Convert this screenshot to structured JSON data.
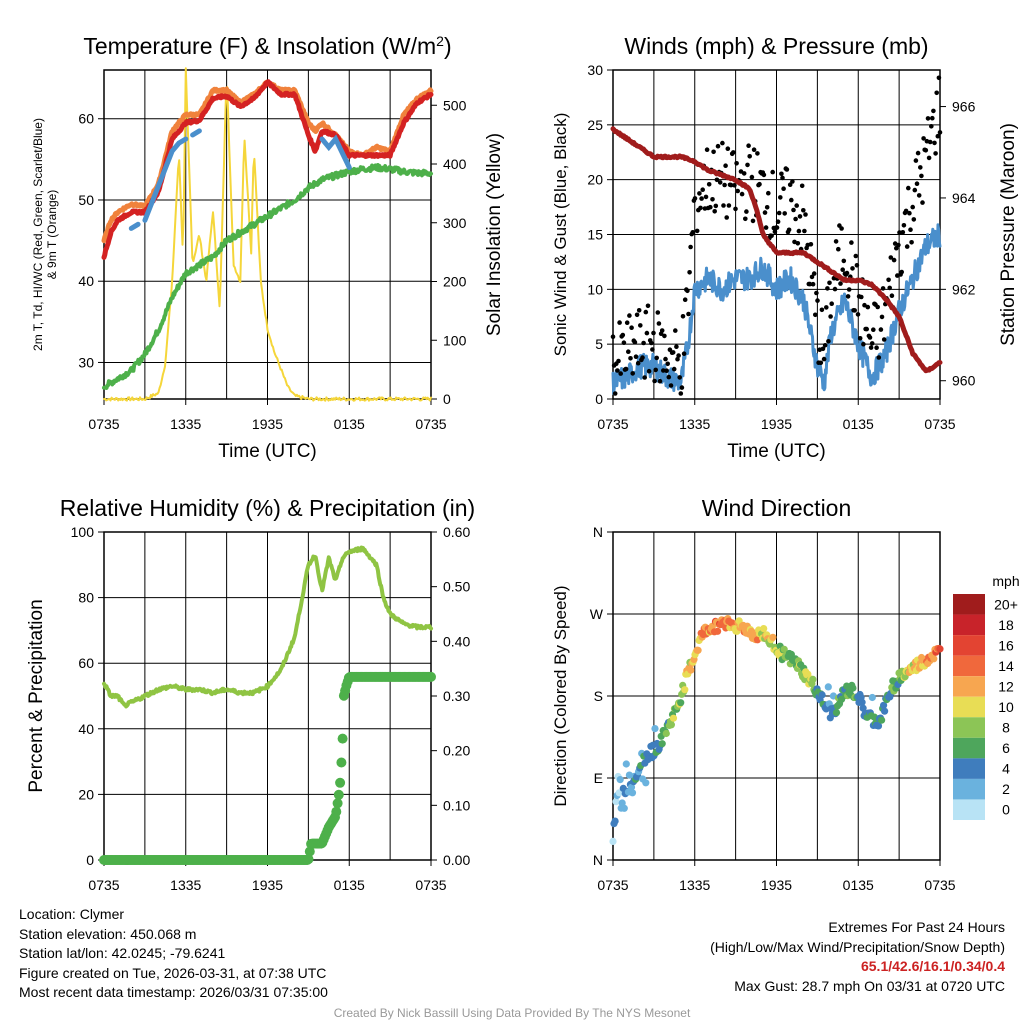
{
  "chart_data": [
    {
      "type": "line",
      "title": "Temperature (F) & Insolation (W/m²)",
      "xlabel": "Time (UTC)",
      "ylabel": "2m T, T_d, HI/WC (Red, Green, Scarlet/Blue) & 9m T (Orange)",
      "ylabel_right": "Solar Insolation (Yellow)",
      "x_ticks": [
        "0735",
        "1335",
        "1935",
        "0135",
        "0735"
      ],
      "xlim": [
        0,
        24
      ],
      "ylim": [
        25.5,
        66
      ],
      "y_ticks": [
        30,
        40,
        50,
        60
      ],
      "ylim_right": [
        0,
        560
      ],
      "y_ticks_right": [
        0,
        100,
        200,
        300,
        400,
        500
      ],
      "series": [
        {
          "name": "9m T",
          "color": "#f0823c",
          "x": [
            0,
            0.5,
            1,
            2,
            3,
            4,
            5,
            6,
            7,
            8,
            9,
            10,
            11,
            12,
            13,
            14,
            15,
            15.5,
            16,
            17,
            18,
            19,
            20,
            21,
            22,
            23,
            24
          ],
          "values": [
            45,
            47.5,
            48.5,
            49.5,
            49.2,
            52,
            58.5,
            60.5,
            60.5,
            63.5,
            63.5,
            62,
            63,
            64.5,
            63.5,
            63.5,
            59.5,
            58.5,
            59.5,
            58,
            56,
            55.5,
            56.5,
            56,
            60.5,
            62.5,
            63.5
          ]
        },
        {
          "name": "2m T",
          "color": "#d42222",
          "x": [
            0,
            0.5,
            1,
            2,
            3,
            4,
            5,
            6,
            7,
            8,
            9,
            10,
            11,
            12,
            13,
            14,
            15,
            15.5,
            16,
            17,
            18,
            19,
            20,
            21,
            22,
            23,
            24
          ],
          "values": [
            43,
            46,
            47.5,
            48.5,
            48.5,
            51,
            57.5,
            59.5,
            59.8,
            62.5,
            62.8,
            61.5,
            62.5,
            64.5,
            63,
            63,
            58,
            56,
            58.5,
            58,
            55.5,
            55.5,
            55.5,
            55.5,
            59.5,
            62,
            63
          ]
        },
        {
          "name": "Dew point",
          "color": "#4db04a",
          "x": [
            0,
            1,
            2,
            3,
            4,
            5,
            6,
            7,
            8,
            9,
            10,
            11,
            12,
            13,
            14,
            15,
            16,
            17,
            18,
            19,
            20,
            21,
            22,
            23,
            24
          ],
          "values": [
            27,
            28,
            29,
            31,
            34,
            38,
            41,
            42,
            43,
            45,
            46,
            47,
            48,
            49,
            50,
            51.5,
            52.5,
            53,
            53.5,
            53.8,
            54,
            53.8,
            53.5,
            53.3,
            53.3
          ]
        },
        {
          "name": "HI/WC",
          "color": "#4a8fcc",
          "x": [
            2,
            2.5,
            3,
            5,
            5.5,
            6,
            6.5,
            7,
            16,
            16.5,
            17,
            18,
            19,
            20,
            21,
            22
          ],
          "values": [
            46.5,
            47,
            47.5,
            56,
            57,
            57.5,
            58,
            58.5,
            57.5,
            56.5,
            57.5,
            54,
            54,
            55,
            57.5,
            58.5
          ]
        },
        {
          "name": "Solar insolation",
          "color": "#f5d63a",
          "axis": "right",
          "x": [
            0,
            3,
            4,
            4.5,
            5,
            5.5,
            5.8,
            6,
            6.5,
            7,
            7.5,
            8,
            8.5,
            9,
            9.5,
            10,
            10.3,
            10.8,
            11,
            11.5,
            12,
            12.5,
            13,
            13.5,
            14,
            15,
            16,
            24
          ],
          "values": [
            0,
            0,
            10,
            60,
            200,
            420,
            240,
            560,
            230,
            280,
            200,
            320,
            150,
            560,
            230,
            200,
            450,
            250,
            430,
            200,
            120,
            80,
            50,
            20,
            5,
            0,
            0,
            0
          ]
        }
      ]
    },
    {
      "type": "scatter",
      "title": "Winds (mph) & Pressure (mb)",
      "xlabel": "Time (UTC)",
      "ylabel": "Sonic Wind & Gust (Blue, Black)",
      "ylabel_right": "Station Pressure (Maroon)",
      "x_ticks": [
        "0735",
        "1335",
        "1935",
        "0135",
        "0735"
      ],
      "xlim": [
        0,
        24
      ],
      "ylim": [
        0,
        30
      ],
      "y_ticks": [
        0,
        5,
        10,
        15,
        20,
        25,
        30
      ],
      "ylim_right": [
        959.6,
        966.8
      ],
      "y_ticks_right": [
        960,
        962,
        964,
        966
      ],
      "series": [
        {
          "name": "Sonic wind",
          "color": "#4a8fcc",
          "x": [
            0,
            1,
            2,
            3,
            4,
            5,
            5.5,
            6,
            7,
            8,
            9,
            10,
            11,
            12,
            13,
            14,
            15,
            15.5,
            16,
            17,
            18,
            19,
            20,
            21,
            22,
            23,
            24
          ],
          "values": [
            1.5,
            2,
            3,
            3,
            2,
            1.5,
            5,
            10,
            11,
            10,
            11,
            11,
            12,
            10,
            11,
            9,
            3,
            1.5,
            6,
            9,
            5,
            2,
            4,
            8,
            11,
            14,
            15
          ]
        },
        {
          "name": "Gust",
          "color": "#000000",
          "x": [
            0,
            1,
            2,
            3,
            4,
            5,
            5.5,
            6,
            7,
            8,
            9,
            10,
            11,
            12,
            13,
            14,
            15,
            15.5,
            16,
            17,
            18,
            19,
            20,
            21,
            22,
            23,
            24
          ],
          "values": [
            3,
            4,
            5,
            5,
            4,
            3,
            9,
            18,
            20,
            20,
            19,
            20,
            19,
            17,
            18,
            16,
            7,
            4,
            10,
            14,
            9,
            5,
            8,
            14,
            18,
            22,
            27
          ]
        },
        {
          "name": "Station pressure",
          "color": "#a01c1c",
          "axis": "right",
          "x": [
            0,
            1,
            2,
            3,
            4,
            5,
            6,
            6.5,
            7,
            8,
            9,
            10,
            10.5,
            11,
            12,
            13,
            14,
            15,
            16,
            17,
            18,
            19,
            20,
            21,
            22,
            23,
            24
          ],
          "values": [
            965.5,
            965.3,
            965.1,
            964.9,
            964.9,
            964.9,
            964.8,
            964.7,
            964.6,
            964.5,
            964.4,
            964.2,
            963.8,
            963.2,
            962.8,
            962.8,
            962.8,
            962.6,
            962.4,
            962.2,
            962.2,
            962.1,
            961.8,
            961.4,
            960.6,
            960.2,
            960.4
          ]
        }
      ]
    },
    {
      "type": "line",
      "title": "Relative Humidity (%) & Precipitation (in)",
      "xlabel": "",
      "ylabel": "Percent & Precipitation",
      "x_ticks": [
        "0735",
        "1335",
        "1935",
        "0135",
        "0735"
      ],
      "xlim": [
        0,
        24
      ],
      "ylim": [
        0,
        100
      ],
      "y_ticks": [
        0,
        20,
        40,
        60,
        80,
        100
      ],
      "ylim_right": [
        0,
        0.6
      ],
      "y_ticks_right": [
        "0.00",
        "0.10",
        "0.20",
        "0.30",
        "0.40",
        "0.50",
        "0.60"
      ],
      "series": [
        {
          "name": "Relative humidity",
          "color": "#8fc443",
          "x": [
            0,
            0.5,
            1,
            1.5,
            2,
            3,
            4,
            5,
            6,
            7,
            8,
            9,
            10,
            11,
            12,
            13,
            14,
            15,
            15.5,
            16,
            16.5,
            17,
            17.5,
            18,
            19,
            20,
            20.5,
            21,
            22,
            23,
            24
          ],
          "values": [
            54,
            50,
            50,
            47,
            48,
            50,
            52,
            53,
            52,
            52,
            51,
            52,
            51,
            51,
            53,
            58,
            68,
            90,
            93,
            82,
            92,
            85,
            92,
            94,
            95,
            90,
            80,
            75,
            72,
            71,
            71
          ]
        },
        {
          "name": "Precipitation",
          "color": "#4db04a",
          "axis": "right",
          "x": [
            0,
            15,
            15.2,
            16,
            16.5,
            17,
            17.3,
            17.5,
            17.6,
            17.8,
            18,
            19,
            24
          ],
          "values": [
            0,
            0,
            0.03,
            0.03,
            0.06,
            0.08,
            0.13,
            0.21,
            0.3,
            0.32,
            0.335,
            0.335,
            0.335
          ]
        }
      ]
    },
    {
      "type": "scatter",
      "title": "Wind Direction",
      "xlabel": "",
      "ylabel": "Direction (Colored By Speed)",
      "x_ticks": [
        "0735",
        "1335",
        "1935",
        "0135",
        "0735"
      ],
      "xlim": [
        0,
        24
      ],
      "ylim": [
        0,
        360
      ],
      "y_ticks": [
        "N",
        "E",
        "S",
        "W",
        "N"
      ],
      "colorbar_title": "mph",
      "colorbar_labels": [
        "20+",
        "18",
        "16",
        "14",
        "12",
        "10",
        "8",
        "6",
        "4",
        "2",
        "0"
      ],
      "colorbar_colors": [
        "#a01c1c",
        "#c8232a",
        "#e34432",
        "#f0683c",
        "#f7a650",
        "#e8dd55",
        "#8cc556",
        "#4ea65c",
        "#3f7dbd",
        "#6ab2de",
        "#b8e3f5"
      ],
      "x": [
        0,
        0.5,
        1,
        1.5,
        2,
        2.5,
        3,
        3.5,
        4,
        4.5,
        5,
        5.5,
        6,
        6.5,
        7,
        7.5,
        8,
        8.5,
        9,
        9.5,
        10,
        10.5,
        11,
        11.5,
        12,
        12.5,
        13,
        13.5,
        14,
        14.5,
        15,
        15.5,
        16,
        16.5,
        17,
        17.5,
        18,
        18.5,
        19,
        19.5,
        20,
        20.5,
        21,
        21.5,
        22,
        22.5,
        23,
        23.5,
        24
      ],
      "values": [
        40,
        70,
        80,
        90,
        105,
        115,
        120,
        130,
        145,
        160,
        180,
        205,
        225,
        245,
        255,
        255,
        262,
        260,
        258,
        255,
        252,
        245,
        250,
        240,
        235,
        225,
        220,
        215,
        205,
        195,
        185,
        170,
        160,
        170,
        185,
        185,
        180,
        160,
        155,
        150,
        170,
        190,
        200,
        205,
        210,
        215,
        220,
        225,
        228
      ],
      "speeds": [
        2,
        2,
        3,
        3,
        4,
        3,
        4,
        5,
        6,
        8,
        8,
        10,
        11,
        12,
        12,
        14,
        13,
        13,
        11,
        12,
        11,
        13,
        10,
        10,
        9,
        8,
        7,
        7,
        8,
        8,
        6,
        5,
        4,
        5,
        6,
        6,
        5,
        4,
        4,
        4,
        5,
        6,
        7,
        9,
        10,
        11,
        12,
        13,
        14
      ]
    }
  ],
  "info": {
    "location": "Location: Clymer",
    "elevation": "Station elevation: 450.068 m",
    "latlon": "Station lat/lon: 42.0245; -79.6241",
    "created": "Figure created on Tue, 2026-03-31, at 07:38 UTC",
    "recent": "Most recent data timestamp: 2026/03/31 07:35:00"
  },
  "extremes": {
    "title": "Extremes For Past 24 Hours",
    "subtitle": "(High/Low/Max Wind/Precipitation/Snow Depth)",
    "values": "65.1/42.6/16.1/0.34/0.4",
    "gust": "Max Gust: 28.7 mph On 03/31 at 0720 UTC"
  },
  "credit": "Created By Nick Bassill Using Data Provided By The NYS Mesonet"
}
